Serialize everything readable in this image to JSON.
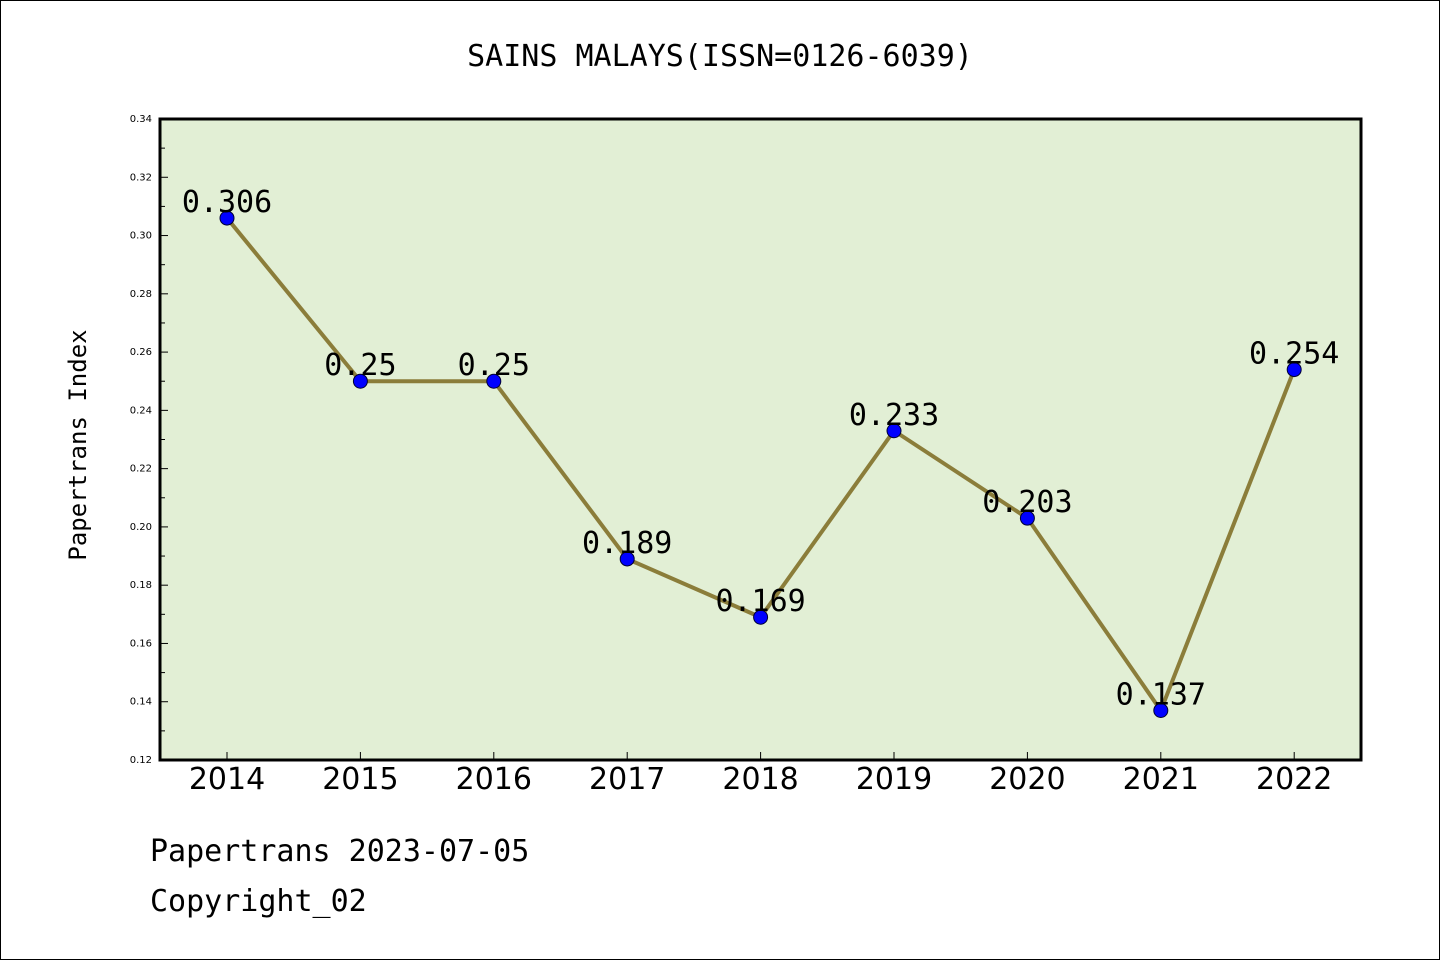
{
  "chart_data": {
    "type": "line",
    "title": "SAINS MALAYS(ISSN=0126-6039)",
    "xlabel": "",
    "ylabel": "Papertrans Index",
    "categories": [
      "2014",
      "2015",
      "2016",
      "2017",
      "2018",
      "2019",
      "2020",
      "2021",
      "2022"
    ],
    "series": [
      {
        "values": [
          0.306,
          0.25,
          0.25,
          0.189,
          0.169,
          0.233,
          0.203,
          0.137,
          0.254
        ],
        "labels": [
          "0.306",
          "0.25",
          "0.25",
          "0.189",
          "0.169",
          "0.233",
          "0.203",
          "0.137",
          "0.254"
        ]
      }
    ],
    "ylim": [
      0.12,
      0.34
    ],
    "yticks": [
      "0.12",
      "0.14",
      "0.16",
      "0.18",
      "0.20",
      "0.22",
      "0.24",
      "0.26",
      "0.28",
      "0.30",
      "0.32",
      "0.34"
    ],
    "grid": false,
    "colors": {
      "line": "#8b7d3a",
      "marker": "#0000ff",
      "plot_background": "#e2efd5"
    }
  },
  "footer": {
    "source": "Papertrans 2023-07-05",
    "copyright": "Copyright_02"
  }
}
